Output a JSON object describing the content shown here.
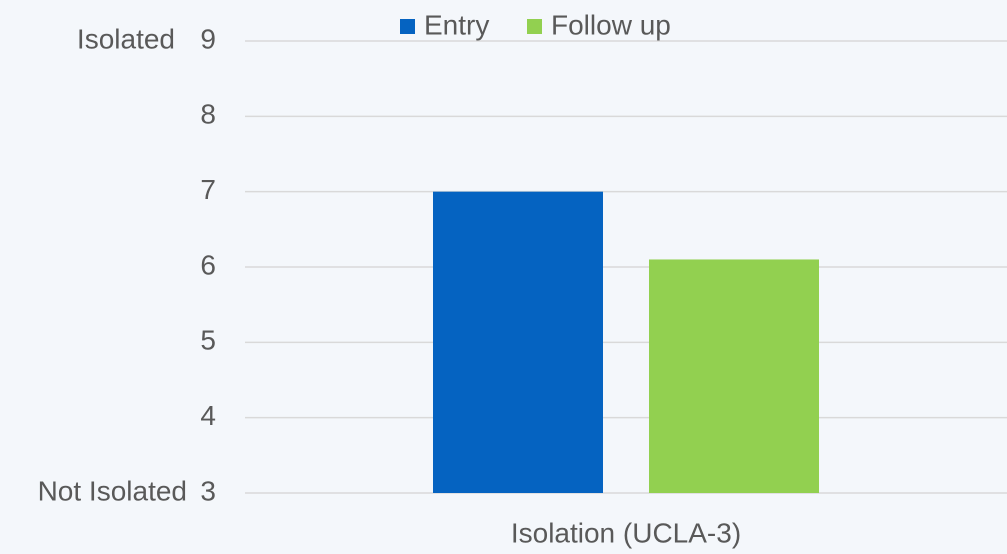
{
  "chart_data": {
    "type": "bar",
    "categories": [
      "Isolation (UCLA-3)"
    ],
    "series": [
      {
        "name": "Entry",
        "color": "#0563c1",
        "values": [
          7.0
        ]
      },
      {
        "name": "Follow up",
        "color": "#92d050",
        "values": [
          6.1
        ]
      }
    ],
    "ylim": [
      3,
      9
    ],
    "yticks": [
      3,
      4,
      5,
      6,
      7,
      8,
      9
    ],
    "grid": true,
    "ylabel_top": "Isolated",
    "ylabel_bottom": "Not Isolated",
    "legend": "top"
  }
}
